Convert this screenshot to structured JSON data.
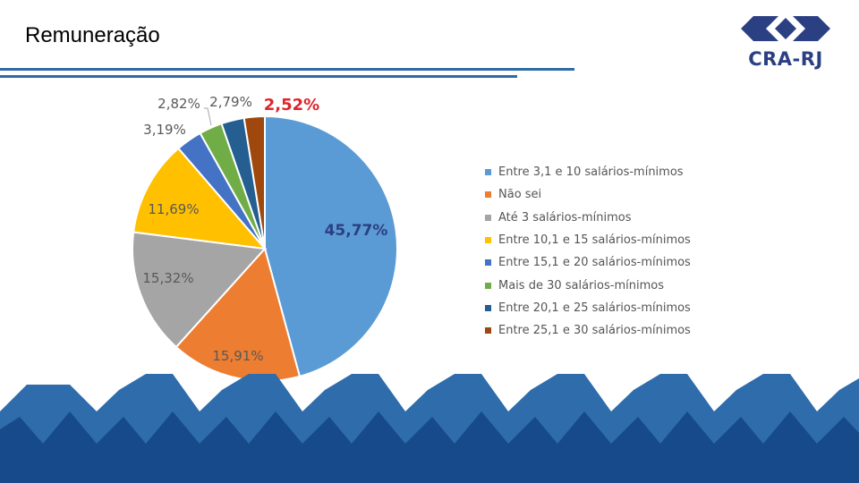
{
  "slide": {
    "title": "Remuneração"
  },
  "logo": {
    "text": "CRA-RJ"
  },
  "colors": {
    "accent_rule": "#2e6aa6",
    "logo_blue": "#2b3f83",
    "wave_light": "#2f6cab",
    "wave_dark": "#174a8b",
    "highlight_label": "#e0242b"
  },
  "chart_data": {
    "type": "pie",
    "title": "",
    "legend_position": "right",
    "slices": [
      {
        "label": "Entre 3,1 e 10 salários-mínimos",
        "value": 45.77,
        "display": "45,77%",
        "color": "#5b9bd5"
      },
      {
        "label": "Não sei",
        "value": 15.91,
        "display": "15,91%",
        "color": "#ed7d31"
      },
      {
        "label": "Até 3 salários-mínimos",
        "value": 15.32,
        "display": "15,32%",
        "color": "#a5a5a5"
      },
      {
        "label": "Entre 10,1 e 15 salários-mínimos",
        "value": 11.69,
        "display": "11,69%",
        "color": "#ffc000"
      },
      {
        "label": "Entre 15,1 e 20 salários-mínimos",
        "value": 3.19,
        "display": "3,19%",
        "color": "#4472c4"
      },
      {
        "label": "Mais de 30 salários-mínimos",
        "value": 2.82,
        "display": "2,82%",
        "color": "#70ad47"
      },
      {
        "label": "Entre 20,1 e 25 salários-mínimos",
        "value": 2.79,
        "display": "2,79%",
        "color": "#255e91"
      },
      {
        "label": "Entre 25,1 e 30 salários-mínimos",
        "value": 2.52,
        "display": "2,52%",
        "color": "#9e480e"
      }
    ]
  }
}
